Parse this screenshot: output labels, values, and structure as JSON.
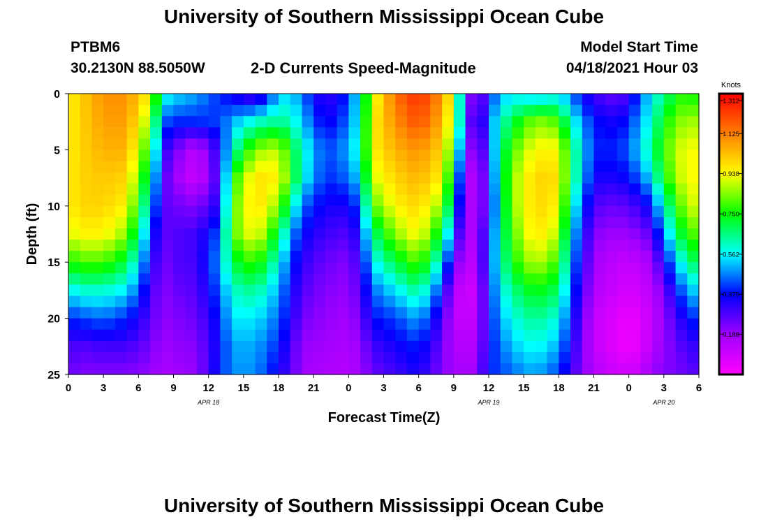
{
  "page": {
    "title_top": "University of Southern Mississippi Ocean Cube",
    "title_bottom": "University of Southern Mississippi Ocean Cube",
    "station": "PTBM6",
    "coords": "30.2130N  88.5050W",
    "subtitle": "2-D Currents Speed-Magnitude",
    "model_label": "Model Start Time",
    "model_time": "04/18/2021 Hour 03"
  },
  "chart_data": {
    "type": "heatmap",
    "title": "2-D Currents Speed-Magnitude",
    "xlabel": "Forecast Time(Z)",
    "ylabel": "Depth (ft)",
    "x_range": [
      0,
      54
    ],
    "y_range": [
      0,
      25
    ],
    "y_reversed": true,
    "x_ticks": [
      0,
      3,
      6,
      9,
      12,
      15,
      18,
      21,
      24,
      27,
      30,
      33,
      36,
      39,
      42,
      45,
      48,
      51,
      54
    ],
    "x_tick_labels": [
      "0",
      "3",
      "6",
      "9",
      "12",
      "15",
      "18",
      "21",
      "0",
      "3",
      "6",
      "9",
      "12",
      "15",
      "18",
      "21",
      "0",
      "3",
      "6"
    ],
    "y_ticks": [
      0,
      5,
      10,
      15,
      20,
      25
    ],
    "y_tick_labels": [
      "0",
      "5",
      "10",
      "15",
      "20",
      "25"
    ],
    "day_labels": [
      {
        "x": 12,
        "label": "APR 18"
      },
      {
        "x": 36,
        "label": "APR 19"
      },
      {
        "x": 51,
        "label": "APR 20"
      }
    ],
    "colorbar": {
      "unit": "Knots",
      "range": [
        0,
        1.312
      ],
      "ticks": [
        1.312,
        1.125,
        0.938,
        0.75,
        0.562,
        0.375,
        0.188
      ],
      "tick_labels": [
        "1.312",
        "1.125",
        "0.938",
        "0.750",
        "0.562",
        "0.375",
        "0.188"
      ]
    },
    "depths_ft": [
      0,
      2.5,
      5,
      7.5,
      10,
      12.5,
      15,
      17.5,
      20,
      22.5,
      25
    ],
    "columns": [
      {
        "t": 0,
        "v": [
          0.95,
          0.95,
          0.95,
          0.95,
          0.95,
          0.9,
          0.75,
          0.55,
          0.4,
          0.3,
          0.25
        ]
      },
      {
        "t": 1,
        "v": [
          1.0,
          1.0,
          1.0,
          1.0,
          1.0,
          0.95,
          0.8,
          0.6,
          0.42,
          0.28,
          0.22
        ]
      },
      {
        "t": 3,
        "v": [
          1.1,
          1.08,
          1.05,
          1.02,
          1.0,
          0.95,
          0.8,
          0.6,
          0.45,
          0.3,
          0.22
        ]
      },
      {
        "t": 5,
        "v": [
          1.1,
          1.08,
          1.05,
          1.0,
          0.95,
          0.85,
          0.7,
          0.55,
          0.4,
          0.3,
          0.22
        ]
      },
      {
        "t": 7,
        "v": [
          0.95,
          0.85,
          0.75,
          0.65,
          0.55,
          0.45,
          0.38,
          0.32,
          0.28,
          0.24,
          0.2
        ]
      },
      {
        "t": 8,
        "v": [
          0.6,
          0.45,
          0.35,
          0.3,
          0.28,
          0.25,
          0.22,
          0.2,
          0.2,
          0.18,
          0.17
        ]
      },
      {
        "t": 9,
        "v": [
          0.55,
          0.4,
          0.25,
          0.2,
          0.25,
          0.28,
          0.28,
          0.25,
          0.22,
          0.2,
          0.18
        ]
      },
      {
        "t": 11,
        "v": [
          0.5,
          0.4,
          0.12,
          0.1,
          0.22,
          0.3,
          0.3,
          0.28,
          0.25,
          0.22,
          0.2
        ]
      },
      {
        "t": 13,
        "v": [
          0.4,
          0.42,
          0.35,
          0.32,
          0.35,
          0.45,
          0.5,
          0.45,
          0.4,
          0.38,
          0.4
        ]
      },
      {
        "t": 14,
        "v": [
          0.35,
          0.5,
          0.6,
          0.75,
          0.8,
          0.8,
          0.7,
          0.6,
          0.55,
          0.5,
          0.48
        ]
      },
      {
        "t": 16,
        "v": [
          0.25,
          0.6,
          0.85,
          0.98,
          1.0,
          0.95,
          0.8,
          0.65,
          0.55,
          0.5,
          0.48
        ]
      },
      {
        "t": 18,
        "v": [
          0.5,
          0.65,
          0.9,
          0.95,
          0.85,
          0.7,
          0.58,
          0.5,
          0.45,
          0.4,
          0.35
        ]
      },
      {
        "t": 19,
        "v": [
          0.55,
          0.62,
          0.75,
          0.78,
          0.65,
          0.5,
          0.42,
          0.38,
          0.35,
          0.3,
          0.28
        ]
      },
      {
        "t": 20,
        "v": [
          0.45,
          0.52,
          0.6,
          0.58,
          0.45,
          0.38,
          0.32,
          0.28,
          0.24,
          0.2,
          0.18
        ]
      },
      {
        "t": 22,
        "v": [
          0.3,
          0.35,
          0.42,
          0.4,
          0.35,
          0.3,
          0.25,
          0.22,
          0.2,
          0.18,
          0.16
        ]
      },
      {
        "t": 24,
        "v": [
          0.4,
          0.45,
          0.5,
          0.45,
          0.35,
          0.28,
          0.22,
          0.2,
          0.18,
          0.16,
          0.15
        ]
      },
      {
        "t": 25,
        "v": [
          0.6,
          0.6,
          0.62,
          0.55,
          0.45,
          0.38,
          0.32,
          0.28,
          0.24,
          0.2,
          0.18
        ]
      },
      {
        "t": 26,
        "v": [
          0.9,
          0.95,
          0.95,
          0.9,
          0.8,
          0.65,
          0.55,
          0.45,
          0.38,
          0.3,
          0.25
        ]
      },
      {
        "t": 28,
        "v": [
          1.15,
          1.1,
          1.05,
          1.0,
          0.95,
          0.85,
          0.7,
          0.55,
          0.42,
          0.35,
          0.3
        ]
      },
      {
        "t": 30,
        "v": [
          1.25,
          1.2,
          1.1,
          1.05,
          1.0,
          0.95,
          0.82,
          0.65,
          0.5,
          0.4,
          0.35
        ]
      },
      {
        "t": 32,
        "v": [
          1.1,
          1.05,
          1.0,
          0.95,
          0.85,
          0.7,
          0.55,
          0.4,
          0.3,
          0.25,
          0.22
        ]
      },
      {
        "t": 33,
        "v": [
          0.9,
          0.85,
          0.75,
          0.65,
          0.55,
          0.42,
          0.28,
          0.15,
          0.12,
          0.15,
          0.18
        ]
      },
      {
        "t": 34,
        "v": [
          0.3,
          0.35,
          0.28,
          0.2,
          0.18,
          0.15,
          0.12,
          0.1,
          0.12,
          0.15,
          0.18
        ]
      },
      {
        "t": 35,
        "v": [
          0.15,
          0.2,
          0.15,
          0.12,
          0.15,
          0.18,
          0.15,
          0.1,
          0.12,
          0.15,
          0.18
        ]
      },
      {
        "t": 36,
        "v": [
          0.4,
          0.45,
          0.4,
          0.35,
          0.32,
          0.38,
          0.42,
          0.4,
          0.38,
          0.38,
          0.4
        ]
      },
      {
        "t": 37,
        "v": [
          0.5,
          0.6,
          0.65,
          0.65,
          0.62,
          0.62,
          0.6,
          0.55,
          0.5,
          0.45,
          0.42
        ]
      },
      {
        "t": 38,
        "v": [
          0.55,
          0.7,
          0.8,
          0.85,
          0.85,
          0.8,
          0.75,
          0.65,
          0.58,
          0.52,
          0.45
        ]
      },
      {
        "t": 40,
        "v": [
          0.5,
          0.85,
          0.95,
          1.0,
          1.0,
          0.98,
          0.9,
          0.75,
          0.65,
          0.58,
          0.5
        ]
      },
      {
        "t": 42,
        "v": [
          0.55,
          0.8,
          0.95,
          0.98,
          0.95,
          0.88,
          0.78,
          0.68,
          0.58,
          0.5,
          0.42
        ]
      },
      {
        "t": 43,
        "v": [
          0.45,
          0.6,
          0.7,
          0.7,
          0.62,
          0.55,
          0.5,
          0.45,
          0.4,
          0.35,
          0.3
        ]
      },
      {
        "t": 45,
        "v": [
          0.3,
          0.38,
          0.4,
          0.35,
          0.28,
          0.22,
          0.18,
          0.15,
          0.12,
          0.12,
          0.15
        ]
      },
      {
        "t": 47,
        "v": [
          0.25,
          0.35,
          0.4,
          0.35,
          0.25,
          0.18,
          0.12,
          0.1,
          0.06,
          0.05,
          0.1
        ]
      },
      {
        "t": 48,
        "v": [
          0.3,
          0.4,
          0.45,
          0.38,
          0.28,
          0.2,
          0.12,
          0.08,
          0.04,
          0.03,
          0.1
        ]
      },
      {
        "t": 49,
        "v": [
          0.45,
          0.5,
          0.55,
          0.45,
          0.32,
          0.22,
          0.14,
          0.1,
          0.06,
          0.06,
          0.12
        ]
      },
      {
        "t": 50,
        "v": [
          0.55,
          0.6,
          0.65,
          0.55,
          0.4,
          0.28,
          0.18,
          0.14,
          0.12,
          0.15,
          0.2
        ]
      },
      {
        "t": 51,
        "v": [
          0.65,
          0.75,
          0.8,
          0.75,
          0.6,
          0.48,
          0.35,
          0.25,
          0.2,
          0.2,
          0.22
        ]
      },
      {
        "t": 53,
        "v": [
          0.8,
          0.88,
          0.95,
          0.95,
          0.9,
          0.8,
          0.65,
          0.5,
          0.38,
          0.3,
          0.25
        ]
      },
      {
        "t": 54,
        "v": [
          0.7,
          0.85,
          0.92,
          0.92,
          0.9,
          0.8,
          0.7,
          0.55,
          0.42,
          0.32,
          0.28
        ]
      }
    ]
  }
}
